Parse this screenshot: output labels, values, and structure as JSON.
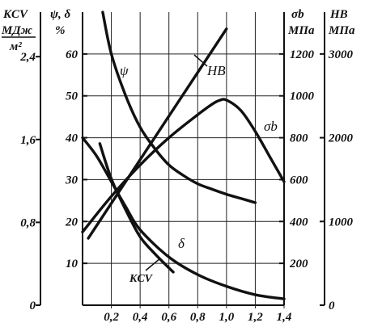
{
  "chart_data": {
    "type": "line",
    "x": {
      "ticks": [
        "0,2",
        "0,4",
        "0,6",
        "0,8",
        "1,0",
        "1,2",
        "1,4"
      ],
      "tick_values": [
        0.2,
        0.4,
        0.6,
        0.8,
        1.0,
        1.2,
        1.4
      ],
      "range": [
        0,
        1.4
      ]
    },
    "axes": {
      "kcv": {
        "header": [
          "KCV",
          "МДж",
          "м²"
        ],
        "ticks": [
          "0",
          "0,8",
          "1,6",
          "2,4"
        ],
        "tick_values": [
          0,
          0.8,
          1.6,
          2.4
        ],
        "range": [
          0,
          2.83
        ]
      },
      "psi": {
        "header": [
          "ψ, δ",
          "%"
        ],
        "ticks": [
          "10",
          "20",
          "30",
          "40",
          "50",
          "60"
        ],
        "tick_values": [
          10,
          20,
          30,
          40,
          50,
          60
        ],
        "range": [
          0,
          70
        ]
      },
      "sigma": {
        "header": [
          "σb",
          "МПа"
        ],
        "ticks": [
          "200",
          "400",
          "600",
          "800",
          "1000",
          "1200"
        ],
        "tick_values": [
          200,
          400,
          600,
          800,
          1000,
          1200
        ],
        "range": [
          0,
          1400
        ]
      },
      "hb": {
        "header": [
          "HB",
          "МПа"
        ],
        "ticks": [
          "0",
          "1000",
          "2000",
          "3000"
        ],
        "tick_values": [
          0,
          1000,
          2000,
          3000
        ],
        "range": [
          0,
          3500
        ]
      }
    },
    "series": [
      {
        "name": "ψ",
        "axis": "psi",
        "x": [
          0.14,
          0.2,
          0.3,
          0.4,
          0.5,
          0.6,
          0.7,
          0.8,
          0.9,
          1.0,
          1.1,
          1.2
        ],
        "y": [
          70,
          60,
          50,
          42.5,
          37.5,
          33.5,
          31,
          29,
          27.7,
          26.5,
          25.5,
          24.5
        ]
      },
      {
        "name": "δ",
        "axis": "psi",
        "x": [
          0.0,
          0.1,
          0.2,
          0.3,
          0.4,
          0.6,
          0.8,
          1.0,
          1.2,
          1.4
        ],
        "y": [
          40,
          35.5,
          29.5,
          23.5,
          18,
          11.5,
          7.3,
          4.5,
          2.5,
          1.5
        ]
      },
      {
        "name": "HB",
        "axis": "sigma",
        "x": [
          0.04,
          1.0
        ],
        "y": [
          320,
          1320
        ]
      },
      {
        "name": "σb",
        "axis": "sigma",
        "x": [
          0.0,
          0.2,
          0.4,
          0.6,
          0.8,
          0.9,
          0.95,
          1.0,
          1.1,
          1.2,
          1.3,
          1.4
        ],
        "y": [
          350,
          520,
          670,
          800,
          910,
          960,
          978,
          980,
          930,
          830,
          710,
          590
        ]
      },
      {
        "name": "KCV",
        "axis": "kcv",
        "x": [
          0.12,
          0.2,
          0.3,
          0.4,
          0.5,
          0.6,
          0.63
        ],
        "y": [
          1.56,
          1.22,
          0.92,
          0.66,
          0.5,
          0.36,
          0.32
        ]
      }
    ],
    "series_labels": [
      "ψ",
      "HB",
      "σb",
      "δ",
      "KCV"
    ],
    "grid": true
  }
}
